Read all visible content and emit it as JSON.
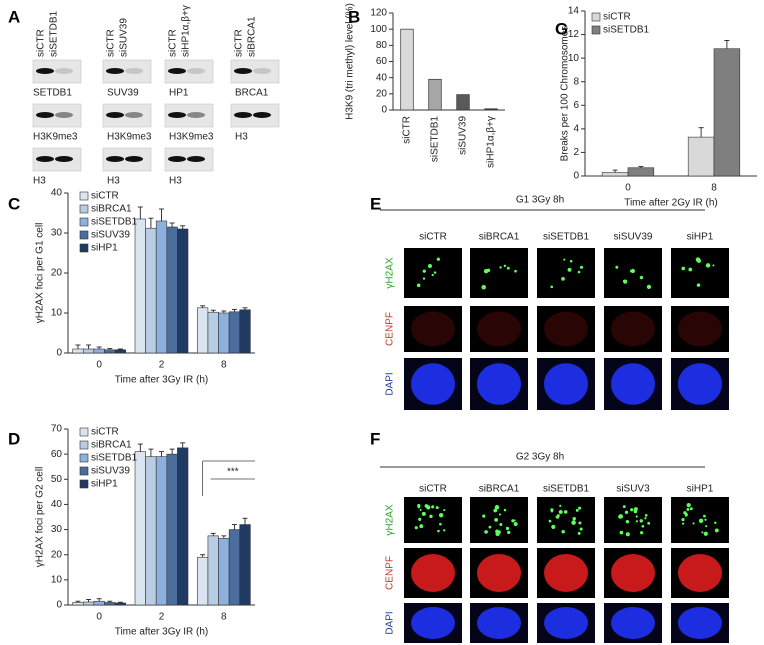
{
  "chart_data": [
    {
      "type": "bar",
      "panel": "B",
      "ylabel": "H3K9 (tri methyl)  level (%)",
      "categories": [
        "siCTR",
        "siSETDB1",
        "siSUV39",
        "siHP1α,β+γ"
      ],
      "values": [
        100,
        38,
        19,
        1.5
      ],
      "colors": [
        "#d9d9d9",
        "#a6a6a6",
        "#595959",
        "#404040"
      ],
      "ylim": [
        0,
        120
      ],
      "yticks": [
        0,
        20,
        40,
        60,
        80,
        100,
        120
      ]
    },
    {
      "type": "bar",
      "panel": "C",
      "xlabel": "Time after 3Gy IR (h)",
      "ylabel": "γH2AX foci per G1 cell",
      "categories": [
        "0",
        "2",
        "8"
      ],
      "series": [
        {
          "name": "siCTR",
          "color": "#dbe5f1",
          "values": [
            1,
            33.5,
            11.3
          ],
          "errors": [
            1,
            3,
            0.5
          ]
        },
        {
          "name": "siBRCA1",
          "color": "#b8cce4",
          "values": [
            1,
            31.2,
            10.2
          ],
          "errors": [
            1,
            2.5,
            0.5
          ]
        },
        {
          "name": "siSETDB1",
          "color": "#8eb0dc",
          "values": [
            1,
            33,
            10
          ],
          "errors": [
            0.5,
            3,
            0.5
          ]
        },
        {
          "name": "siSUV39",
          "color": "#4a6d9c",
          "values": [
            0.8,
            31.5,
            10.3
          ],
          "errors": [
            0.3,
            1,
            0.6
          ]
        },
        {
          "name": "siHP1",
          "color": "#1f3a63",
          "values": [
            0.8,
            31,
            10.8
          ],
          "errors": [
            0.2,
            0.8,
            0.5
          ]
        }
      ],
      "ylim": [
        0,
        40
      ],
      "yticks": [
        0,
        10,
        20,
        30,
        40
      ]
    },
    {
      "type": "bar",
      "panel": "D",
      "xlabel": "Time after 3Gy IR (h)",
      "ylabel": "γH2AX foci per G2 cell",
      "categories": [
        "0",
        "2",
        "8"
      ],
      "series": [
        {
          "name": "siCTR",
          "color": "#dbe5f1",
          "values": [
            1,
            61,
            19
          ],
          "errors": [
            0.5,
            3,
            1
          ]
        },
        {
          "name": "siBRCA1",
          "color": "#b8cce4",
          "values": [
            1.2,
            59,
            27.5
          ],
          "errors": [
            1,
            3,
            1
          ]
        },
        {
          "name": "siSETDB1",
          "color": "#8eb0dc",
          "values": [
            1.5,
            59,
            26.5
          ],
          "errors": [
            1,
            2,
            1
          ]
        },
        {
          "name": "siSUV39",
          "color": "#4a6d9c",
          "values": [
            1,
            60,
            30
          ],
          "errors": [
            0.5,
            2,
            2
          ]
        },
        {
          "name": "siHP1",
          "color": "#1f3a63",
          "values": [
            0.8,
            62.5,
            32
          ],
          "errors": [
            0.3,
            2,
            2.5
          ]
        }
      ],
      "annotation": "***",
      "ylim": [
        0,
        70
      ],
      "yticks": [
        0,
        10,
        20,
        30,
        40,
        50,
        60,
        70
      ]
    },
    {
      "type": "bar",
      "panel": "G",
      "xlabel": "Time after 2Gy IR (h)",
      "ylabel": "Breaks per 100 Chromosomes",
      "categories": [
        "0",
        "8"
      ],
      "series": [
        {
          "name": "siCTR",
          "color": "#d9d9d9",
          "values": [
            0.3,
            3.3
          ],
          "errors": [
            0.2,
            0.8
          ]
        },
        {
          "name": "siSETDB1",
          "color": "#7f7f7f",
          "values": [
            0.7,
            10.8
          ],
          "errors": [
            0.1,
            0.7
          ]
        }
      ],
      "ylim": [
        0,
        14
      ],
      "yticks": [
        0,
        2,
        4,
        6,
        8,
        10,
        12,
        14
      ]
    }
  ],
  "panel_A": {
    "panel": "A",
    "blots": [
      {
        "headers": [
          "siCTR",
          "siSETDB1"
        ],
        "labels": [
          "SETDB1",
          "H3K9me3",
          "H3"
        ]
      },
      {
        "headers": [
          "siCTR",
          "siSUV39"
        ],
        "labels": [
          "SUV39",
          "H3K9me3",
          "H3"
        ]
      },
      {
        "headers": [
          "siCTR",
          "siHP1α,β+γ"
        ],
        "labels": [
          "HP1",
          "H3K9me3",
          "H3"
        ]
      },
      {
        "headers": [
          "siCTR",
          "siBRCA1"
        ],
        "labels": [
          "BRCA1",
          "H3"
        ]
      }
    ]
  },
  "panel_E": {
    "panel": "E",
    "title": "G1 3Gy 8h",
    "columns": [
      "siCTR",
      "siBRCA1",
      "siSETDB1",
      "siSUV39",
      "siHP1"
    ],
    "rows": [
      "γH2AX",
      "CENPF",
      "DAPI"
    ]
  },
  "panel_F": {
    "panel": "F",
    "title": "G2 3Gy 8h",
    "columns": [
      "siCTR",
      "siBRCA1",
      "siSETDB1",
      "siSUV3",
      "siHP1"
    ],
    "rows": [
      "γH2AX",
      "CENPF",
      "DAPI"
    ]
  }
}
